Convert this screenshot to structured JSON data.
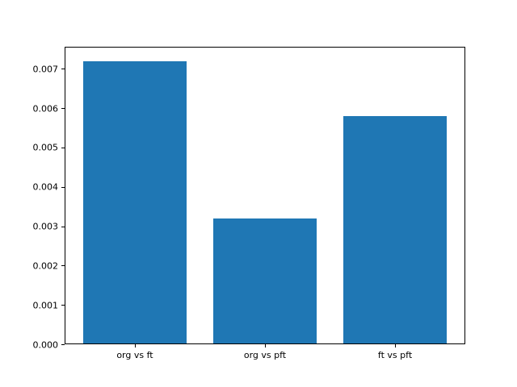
{
  "chart_data": {
    "type": "bar",
    "categories": [
      "org vs ft",
      "org vs pft",
      "ft vs pft"
    ],
    "values": [
      0.0072,
      0.0032,
      0.0058
    ],
    "title": "",
    "xlabel": "",
    "ylabel": "",
    "ylim": [
      0,
      0.00756
    ],
    "xlim": [
      -0.54,
      2.54
    ],
    "bar_width_units": 0.8,
    "yticks": [
      0.0,
      0.001,
      0.002,
      0.003,
      0.004,
      0.005,
      0.006,
      0.007
    ],
    "ytick_decimals": 3,
    "grid": false,
    "legend": null,
    "bar_color": "#1f77b4",
    "axis_color": "#000000",
    "background_color": "#ffffff"
  }
}
